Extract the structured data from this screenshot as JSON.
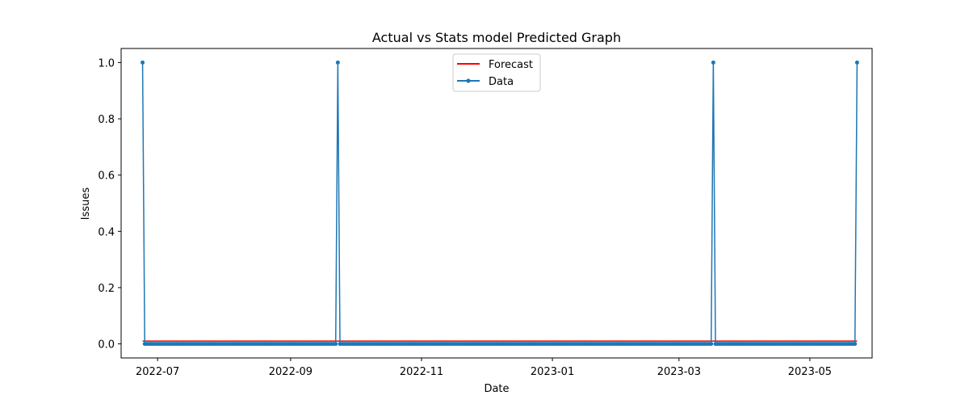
{
  "chart_data": {
    "type": "line",
    "title": "Actual vs Stats model Predicted Graph",
    "xlabel": "Date",
    "ylabel": "Issues",
    "x_range": [
      "2022-06-14",
      "2023-05-30"
    ],
    "ylim": [
      -0.05,
      1.05
    ],
    "x_ticks": [
      "2022-07",
      "2022-09",
      "2022-11",
      "2023-01",
      "2023-03",
      "2023-05"
    ],
    "y_ticks": [
      "0.0",
      "0.2",
      "0.4",
      "0.6",
      "0.8",
      "1.0"
    ],
    "grid": false,
    "legend_position": "top-center",
    "start_date": "2022-06-24",
    "end_date": "2023-05-23",
    "spike_dates": [
      "2022-06-24",
      "2022-09-23",
      "2023-03-17",
      "2023-05-23"
    ],
    "series": [
      {
        "name": "Forecast",
        "color": "#ff0000",
        "marker": "none",
        "baseline_value": 0.01,
        "spike_value": 0.01
      },
      {
        "name": "Data",
        "color": "#1f77b4",
        "marker": "dot",
        "baseline_value": 0.0,
        "spike_value": 1.0
      }
    ]
  }
}
